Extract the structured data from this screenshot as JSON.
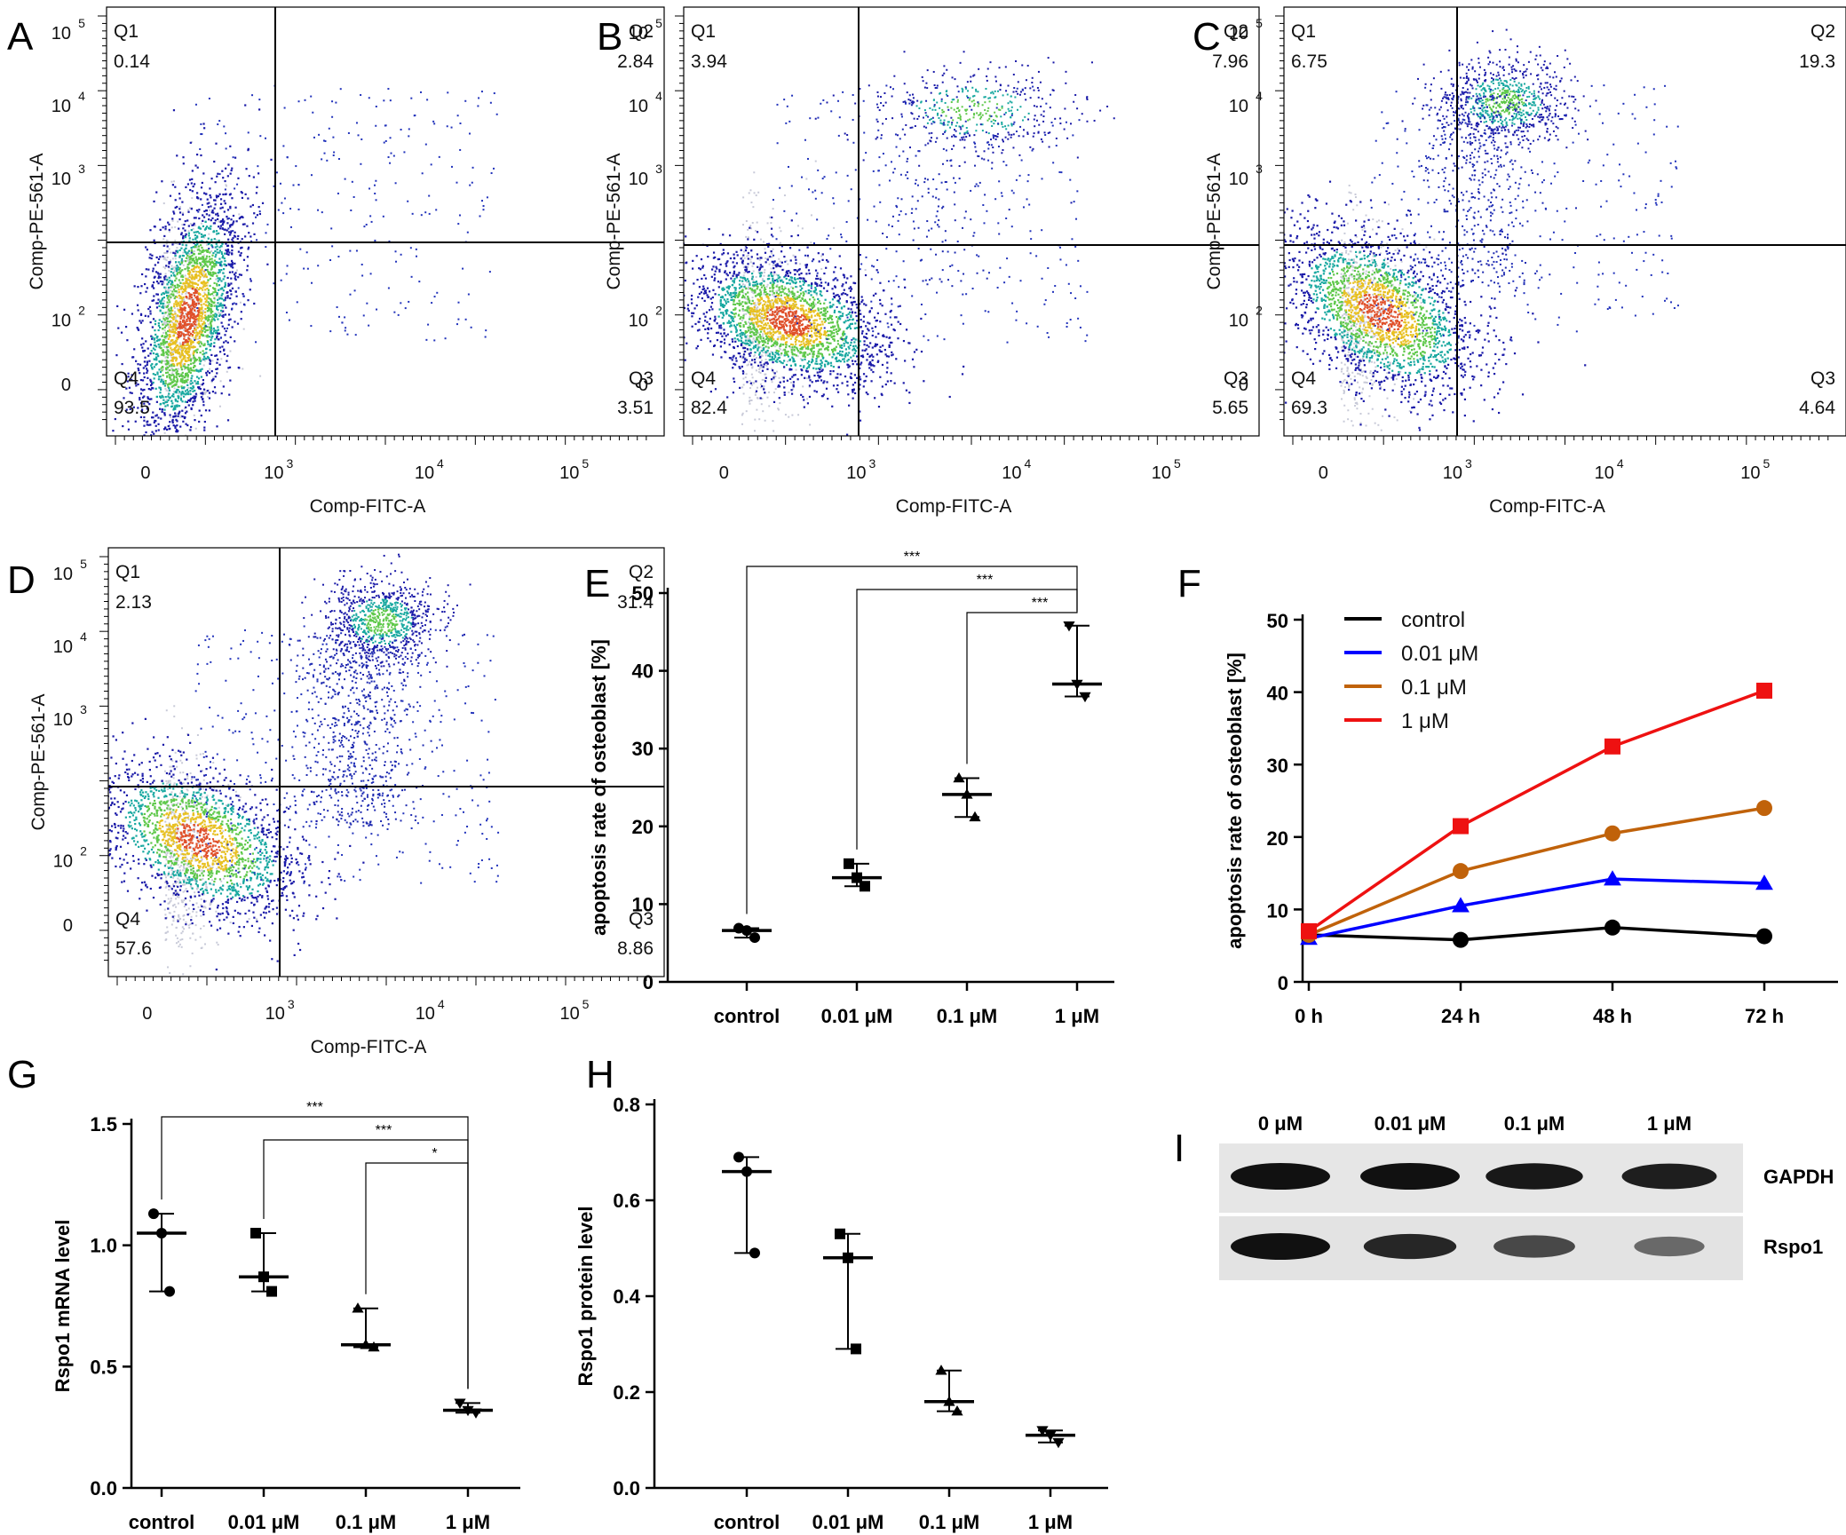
{
  "chart_data": [
    {
      "panel": "A",
      "type": "scatter",
      "subtype": "flow-cytometry",
      "xlabel": "Comp-FITC-A",
      "ylabel": "Comp-PE-561-A",
      "x_ticks": [
        "0",
        "10",
        "10",
        "10"
      ],
      "x_tick_exp": [
        "",
        "3",
        "4",
        "5"
      ],
      "y_ticks": [
        "0",
        "10",
        "10",
        "10",
        "10"
      ],
      "y_tick_exp": [
        "",
        "2",
        "3",
        "4",
        "5"
      ],
      "quadrants": [
        {
          "name": "Q1",
          "value": "0.14"
        },
        {
          "name": "Q2",
          "value": "2.84"
        },
        {
          "name": "Q3",
          "value": "3.51"
        },
        {
          "name": "Q4",
          "value": "93.5"
        }
      ]
    },
    {
      "panel": "B",
      "type": "scatter",
      "subtype": "flow-cytometry",
      "xlabel": "Comp-FITC-A",
      "ylabel": "Comp-PE-561-A",
      "x_ticks": [
        "0",
        "10",
        "10",
        "10"
      ],
      "x_tick_exp": [
        "",
        "3",
        "4",
        "5"
      ],
      "y_ticks": [
        "0",
        "10",
        "10",
        "10",
        "10"
      ],
      "y_tick_exp": [
        "",
        "2",
        "3",
        "4",
        "5"
      ],
      "quadrants": [
        {
          "name": "Q1",
          "value": "3.94"
        },
        {
          "name": "Q2",
          "value": "7.96"
        },
        {
          "name": "Q3",
          "value": "5.65"
        },
        {
          "name": "Q4",
          "value": "82.4"
        }
      ]
    },
    {
      "panel": "C",
      "type": "scatter",
      "subtype": "flow-cytometry",
      "xlabel": "Comp-FITC-A",
      "ylabel": "Comp-PE-561-A",
      "x_ticks": [
        "0",
        "10",
        "10",
        "10"
      ],
      "x_tick_exp": [
        "",
        "3",
        "4",
        "5"
      ],
      "y_ticks": [
        "0",
        "10",
        "10",
        "10",
        "10"
      ],
      "y_tick_exp": [
        "",
        "2",
        "3",
        "4",
        "5"
      ],
      "quadrants": [
        {
          "name": "Q1",
          "value": "6.75"
        },
        {
          "name": "Q2",
          "value": "19.3"
        },
        {
          "name": "Q3",
          "value": "4.64"
        },
        {
          "name": "Q4",
          "value": "69.3"
        }
      ]
    },
    {
      "panel": "D",
      "type": "scatter",
      "subtype": "flow-cytometry",
      "xlabel": "Comp-FITC-A",
      "ylabel": "Comp-PE-561-A",
      "x_ticks": [
        "0",
        "10",
        "10",
        "10"
      ],
      "x_tick_exp": [
        "",
        "3",
        "4",
        "5"
      ],
      "y_ticks": [
        "0",
        "10",
        "10",
        "10",
        "10"
      ],
      "y_tick_exp": [
        "",
        "2",
        "3",
        "4",
        "5"
      ],
      "quadrants": [
        {
          "name": "Q1",
          "value": "2.13"
        },
        {
          "name": "Q2",
          "value": "31.4"
        },
        {
          "name": "Q3",
          "value": "8.86"
        },
        {
          "name": "Q4",
          "value": "57.6"
        }
      ]
    },
    {
      "panel": "E",
      "type": "scatter",
      "subtype": "dot-plot-median-range",
      "ylabel": "apoptosis rate of osteoblast [%]",
      "ylim": [
        0,
        50
      ],
      "yticks": [
        0,
        10,
        20,
        30,
        40,
        50
      ],
      "categories": [
        "control",
        "0.01 μM",
        "0.1 μM",
        "1 μM"
      ],
      "markers": [
        "circle",
        "square",
        "triangle",
        "triangle-down"
      ],
      "points": [
        [
          6.9,
          6.6,
          5.7
        ],
        [
          15.2,
          13.4,
          12.3
        ],
        [
          26.2,
          24.1,
          21.2
        ],
        [
          45.8,
          38.3,
          36.7
        ]
      ],
      "medians": [
        6.6,
        13.4,
        24.1,
        38.3
      ],
      "significance": [
        {
          "from": "control",
          "to": "1 μM",
          "label": "***"
        },
        {
          "from": "0.01 μM",
          "to": "1 μM",
          "label": "***"
        },
        {
          "from": "0.1 μM",
          "to": "1 μM",
          "label": "***"
        }
      ]
    },
    {
      "panel": "F",
      "type": "line",
      "ylabel": "apoptosis rate of osteoblast [%]",
      "ylim": [
        0,
        50
      ],
      "yticks": [
        0,
        10,
        20,
        30,
        40,
        50
      ],
      "categories": [
        "0 h",
        "24 h",
        "48 h",
        "72 h"
      ],
      "series": [
        {
          "name": "control",
          "color": "#000000",
          "marker": "circle",
          "values": [
            6.5,
            5.8,
            7.5,
            6.3
          ]
        },
        {
          "name": "0.01 μM",
          "color": "#0000ff",
          "marker": "triangle",
          "values": [
            6.0,
            10.5,
            14.2,
            13.6
          ]
        },
        {
          "name": "0.1 μM",
          "color": "#c0620a",
          "marker": "circle",
          "values": [
            6.5,
            15.3,
            20.5,
            24.0
          ]
        },
        {
          "name": "1 μM",
          "color": "#ee1111",
          "marker": "square",
          "values": [
            7.0,
            21.5,
            32.5,
            40.2
          ]
        }
      ]
    },
    {
      "panel": "G",
      "type": "scatter",
      "subtype": "dot-plot-median-range",
      "ylabel": "Rspo1 mRNA level",
      "ylim": [
        0,
        1.5
      ],
      "yticks": [
        0.0,
        0.5,
        1.0,
        1.5
      ],
      "ytick_labels": [
        "0.0",
        "0.5",
        "1.0",
        "1.5"
      ],
      "categories": [
        "control",
        "0.01 μM",
        "0.1 μM",
        "1 μM"
      ],
      "markers": [
        "circle",
        "square",
        "triangle",
        "triangle-down"
      ],
      "points": [
        [
          1.13,
          1.05,
          0.81
        ],
        [
          1.05,
          0.87,
          0.81
        ],
        [
          0.74,
          0.59,
          0.58
        ],
        [
          0.35,
          0.32,
          0.31
        ]
      ],
      "medians": [
        1.05,
        0.87,
        0.59,
        0.32
      ],
      "significance": [
        {
          "from": "control",
          "to": "1 μM",
          "label": "***"
        },
        {
          "from": "0.01 μM",
          "to": "1 μM",
          "label": "***"
        },
        {
          "from": "0.1 μM",
          "to": "1 μM",
          "label": "*"
        }
      ]
    },
    {
      "panel": "H",
      "type": "scatter",
      "subtype": "dot-plot-median-range",
      "ylabel": "Rspo1 protein level",
      "ylim": [
        0,
        0.8
      ],
      "yticks": [
        0.0,
        0.2,
        0.4,
        0.6,
        0.8
      ],
      "ytick_labels": [
        "0.0",
        "0.2",
        "0.4",
        "0.6",
        "0.8"
      ],
      "categories": [
        "control",
        "0.01 μM",
        "0.1 μM",
        "1 μM"
      ],
      "markers": [
        "circle",
        "square",
        "triangle",
        "triangle-down"
      ],
      "points": [
        [
          0.69,
          0.66,
          0.49
        ],
        [
          0.53,
          0.48,
          0.29
        ],
        [
          0.245,
          0.18,
          0.16
        ],
        [
          0.12,
          0.11,
          0.095
        ]
      ],
      "medians": [
        0.66,
        0.48,
        0.18,
        0.11
      ],
      "significance": []
    },
    {
      "panel": "I",
      "type": "table",
      "subtype": "western-blot",
      "lanes": [
        "0 μM",
        "0.01 μM",
        "0.1 μM",
        "1 μM"
      ],
      "rows": [
        {
          "name": "GAPDH",
          "band_intensity": [
            1.0,
            1.0,
            0.95,
            0.9
          ]
        },
        {
          "name": "Rspo1",
          "band_intensity": [
            1.0,
            0.85,
            0.6,
            0.35
          ]
        }
      ]
    }
  ]
}
